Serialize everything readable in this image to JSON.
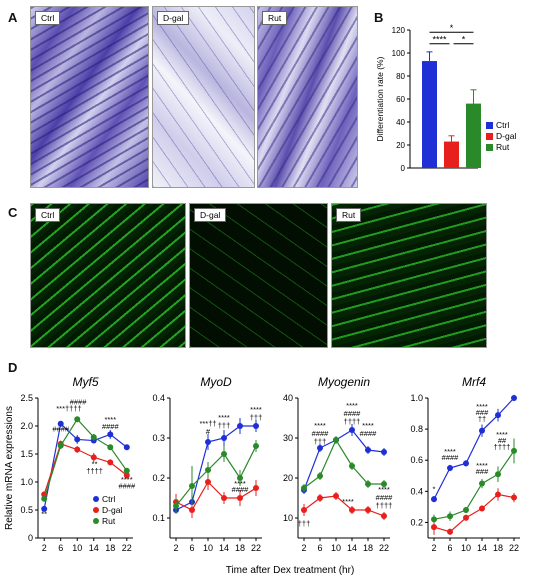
{
  "panels": {
    "A": "A",
    "B": "B",
    "C": "C",
    "D": "D"
  },
  "histology_labels": [
    "Ctrl",
    "D-gal",
    "Rut"
  ],
  "fluor_labels": [
    "Ctrl",
    "D-gal",
    "Rut"
  ],
  "colors": {
    "ctrl": "#1f2fd6",
    "dgal": "#e8201d",
    "rut": "#2a8a2a",
    "stain": "#5a4fb0",
    "fluor": "#2fd02f"
  },
  "chart_data": [
    {
      "type": "bar",
      "panel": "B",
      "categories": [
        "Ctrl",
        "D-gal",
        "Rut"
      ],
      "values": [
        93,
        23,
        56
      ],
      "errors": [
        8,
        5,
        12
      ],
      "ylabel": "Differentiation rate (%)",
      "ylim": [
        0,
        120
      ],
      "yticks": [
        0,
        20,
        40,
        60,
        80,
        100,
        120
      ],
      "legend": [
        "Ctrl",
        "D-gal",
        "Rut"
      ],
      "significance": [
        {
          "from": 0,
          "to": 1,
          "label": "****"
        },
        {
          "from": 1,
          "to": 2,
          "label": "*"
        },
        {
          "from": 0,
          "to": 2,
          "label": "*"
        }
      ]
    },
    {
      "type": "line",
      "panel": "D",
      "title": "Myf5",
      "x": [
        2,
        6,
        10,
        14,
        18,
        22
      ],
      "ylim": [
        0,
        2.5
      ],
      "yticks": [
        "0",
        "0.5",
        "1.0",
        "1.5",
        "2.0",
        "2.5"
      ],
      "ytickvals": [
        0,
        0.5,
        1.0,
        1.5,
        2.0,
        2.5
      ],
      "series": [
        {
          "name": "Ctrl",
          "values": [
            0.52,
            2.04,
            1.76,
            1.74,
            1.85,
            1.62
          ],
          "err": [
            0.05,
            0.04,
            0.08,
            0.05,
            0.08,
            0.05
          ]
        },
        {
          "name": "D-gal",
          "values": [
            0.78,
            1.68,
            1.58,
            1.44,
            1.35,
            1.12
          ],
          "err": [
            0.05,
            0.06,
            0.06,
            0.08,
            0.05,
            0.06
          ]
        },
        {
          "name": "Rut",
          "values": [
            0.7,
            1.65,
            2.12,
            1.8,
            1.62,
            1.2
          ],
          "err": [
            0.05,
            0.06,
            0.05,
            0.06,
            0.05,
            0.05
          ]
        }
      ],
      "annotations": [
        {
          "x": 2,
          "y": 0.38,
          "text": "**"
        },
        {
          "x": 6,
          "y": 1.9,
          "text": "####"
        },
        {
          "x": 8,
          "y": 2.27,
          "text": "***††††"
        },
        {
          "x": 10.2,
          "y": 2.38,
          "text": "####"
        },
        {
          "x": 18,
          "y": 2.07,
          "text": "****"
        },
        {
          "x": 18,
          "y": 1.95,
          "text": "####"
        },
        {
          "x": 14.2,
          "y": 1.28,
          "text": "**"
        },
        {
          "x": 14.2,
          "y": 1.15,
          "text": "††††"
        },
        {
          "x": 22,
          "y": 1.0,
          "text": "****"
        },
        {
          "x": 22,
          "y": 0.88,
          "text": "####"
        }
      ],
      "legend": [
        "Ctrl",
        "D-gal",
        "Rut"
      ]
    },
    {
      "type": "line",
      "panel": "D",
      "title": "MyoD",
      "x": [
        2,
        6,
        10,
        14,
        18,
        22
      ],
      "ylim": [
        0.05,
        0.4
      ],
      "yticks": [
        "0.1",
        "0.2",
        "0.3",
        "0.4"
      ],
      "ytickvals": [
        0.1,
        0.2,
        0.3,
        0.4
      ],
      "series": [
        {
          "name": "Ctrl",
          "values": [
            0.12,
            0.14,
            0.29,
            0.3,
            0.33,
            0.33
          ],
          "err": [
            0.01,
            0.015,
            0.02,
            0.02,
            0.02,
            0.015
          ]
        },
        {
          "name": "D-gal",
          "values": [
            0.14,
            0.12,
            0.19,
            0.15,
            0.15,
            0.175
          ],
          "err": [
            0.02,
            0.02,
            0.02,
            0.015,
            0.02,
            0.02
          ]
        },
        {
          "name": "Rut",
          "values": [
            0.13,
            0.18,
            0.22,
            0.26,
            0.2,
            0.28
          ],
          "err": [
            0.02,
            0.05,
            0.02,
            0.02,
            0.02,
            0.015
          ]
        }
      ],
      "annotations": [
        {
          "x": 10,
          "y": 0.33,
          "text": "***††"
        },
        {
          "x": 10,
          "y": 0.31,
          "text": "#"
        },
        {
          "x": 14,
          "y": 0.345,
          "text": "****"
        },
        {
          "x": 14,
          "y": 0.325,
          "text": "†††"
        },
        {
          "x": 22,
          "y": 0.365,
          "text": "****"
        },
        {
          "x": 22,
          "y": 0.345,
          "text": "†††"
        },
        {
          "x": 18,
          "y": 0.18,
          "text": "****"
        },
        {
          "x": 18,
          "y": 0.165,
          "text": "####"
        }
      ]
    },
    {
      "type": "line",
      "panel": "D",
      "title": "Myogenin",
      "x": [
        2,
        6,
        10,
        14,
        18,
        22
      ],
      "ylim": [
        5,
        40
      ],
      "yticks": [
        "10",
        "20",
        "30",
        "40"
      ],
      "ytickvals": [
        10,
        20,
        30,
        40
      ],
      "series": [
        {
          "name": "Ctrl",
          "values": [
            17,
            27.5,
            29.5,
            32,
            27,
            26.5
          ],
          "err": [
            1,
            1,
            1,
            1.5,
            1,
            1
          ]
        },
        {
          "name": "D-gal",
          "values": [
            12,
            15,
            15.5,
            12,
            12,
            10.5
          ],
          "err": [
            1.5,
            1,
            1,
            1,
            1,
            1
          ]
        },
        {
          "name": "Rut",
          "values": [
            17.5,
            20.5,
            29.5,
            23,
            18.5,
            18.5
          ],
          "err": [
            1,
            1,
            1,
            1,
            1,
            1
          ]
        }
      ],
      "annotations": [
        {
          "x": 2,
          "y": 8,
          "text": "†††"
        },
        {
          "x": 6,
          "y": 32.5,
          "text": "****"
        },
        {
          "x": 6,
          "y": 30.5,
          "text": "####"
        },
        {
          "x": 6,
          "y": 28.5,
          "text": "†††"
        },
        {
          "x": 14,
          "y": 37.5,
          "text": "****"
        },
        {
          "x": 14,
          "y": 35.5,
          "text": "####"
        },
        {
          "x": 14,
          "y": 33.5,
          "text": "††††"
        },
        {
          "x": 18,
          "y": 32.5,
          "text": "****"
        },
        {
          "x": 18,
          "y": 30.5,
          "text": "####"
        },
        {
          "x": 13,
          "y": 13.5,
          "text": "****"
        },
        {
          "x": 22,
          "y": 16.5,
          "text": "****"
        },
        {
          "x": 22,
          "y": 14.5,
          "text": "####"
        },
        {
          "x": 22,
          "y": 12.5,
          "text": "††††"
        }
      ]
    },
    {
      "type": "line",
      "panel": "D",
      "title": "Mrf4",
      "x": [
        2,
        6,
        10,
        14,
        18,
        22
      ],
      "ylim": [
        0.1,
        1.0
      ],
      "yticks": [
        "0.2",
        "0.4",
        "0.6",
        "0.8",
        "1.0"
      ],
      "ytickvals": [
        0.2,
        0.4,
        0.6,
        0.8,
        1.0
      ],
      "series": [
        {
          "name": "Ctrl",
          "values": [
            0.35,
            0.55,
            0.58,
            0.79,
            0.89,
            1.0
          ],
          "err": [
            0.02,
            0.02,
            0.02,
            0.04,
            0.04,
            0.02
          ]
        },
        {
          "name": "D-gal",
          "values": [
            0.17,
            0.14,
            0.23,
            0.29,
            0.38,
            0.36
          ],
          "err": [
            0.05,
            0.02,
            0.02,
            0.02,
            0.04,
            0.03
          ]
        },
        {
          "name": "Rut",
          "values": [
            0.22,
            0.24,
            0.28,
            0.45,
            0.51,
            0.66
          ],
          "err": [
            0.03,
            0.03,
            0.02,
            0.03,
            0.05,
            0.08
          ]
        }
      ],
      "annotations": [
        {
          "x": 2,
          "y": 0.4,
          "text": "*"
        },
        {
          "x": 6,
          "y": 0.64,
          "text": "****"
        },
        {
          "x": 6,
          "y": 0.6,
          "text": "####"
        },
        {
          "x": 14,
          "y": 0.93,
          "text": "****"
        },
        {
          "x": 14,
          "y": 0.89,
          "text": "###"
        },
        {
          "x": 14,
          "y": 0.85,
          "text": "††"
        },
        {
          "x": 14,
          "y": 0.55,
          "text": "****"
        },
        {
          "x": 14,
          "y": 0.51,
          "text": "###"
        },
        {
          "x": 19,
          "y": 0.75,
          "text": "****"
        },
        {
          "x": 19,
          "y": 0.71,
          "text": "##"
        },
        {
          "x": 19,
          "y": 0.67,
          "text": "††††"
        }
      ]
    }
  ],
  "shared": {
    "ylabel": "Relative mRNA expressions",
    "xlabel": "Time after Dex treatment (hr)",
    "xticks": [
      "2",
      "6",
      "10",
      "14",
      "18",
      "22"
    ]
  }
}
